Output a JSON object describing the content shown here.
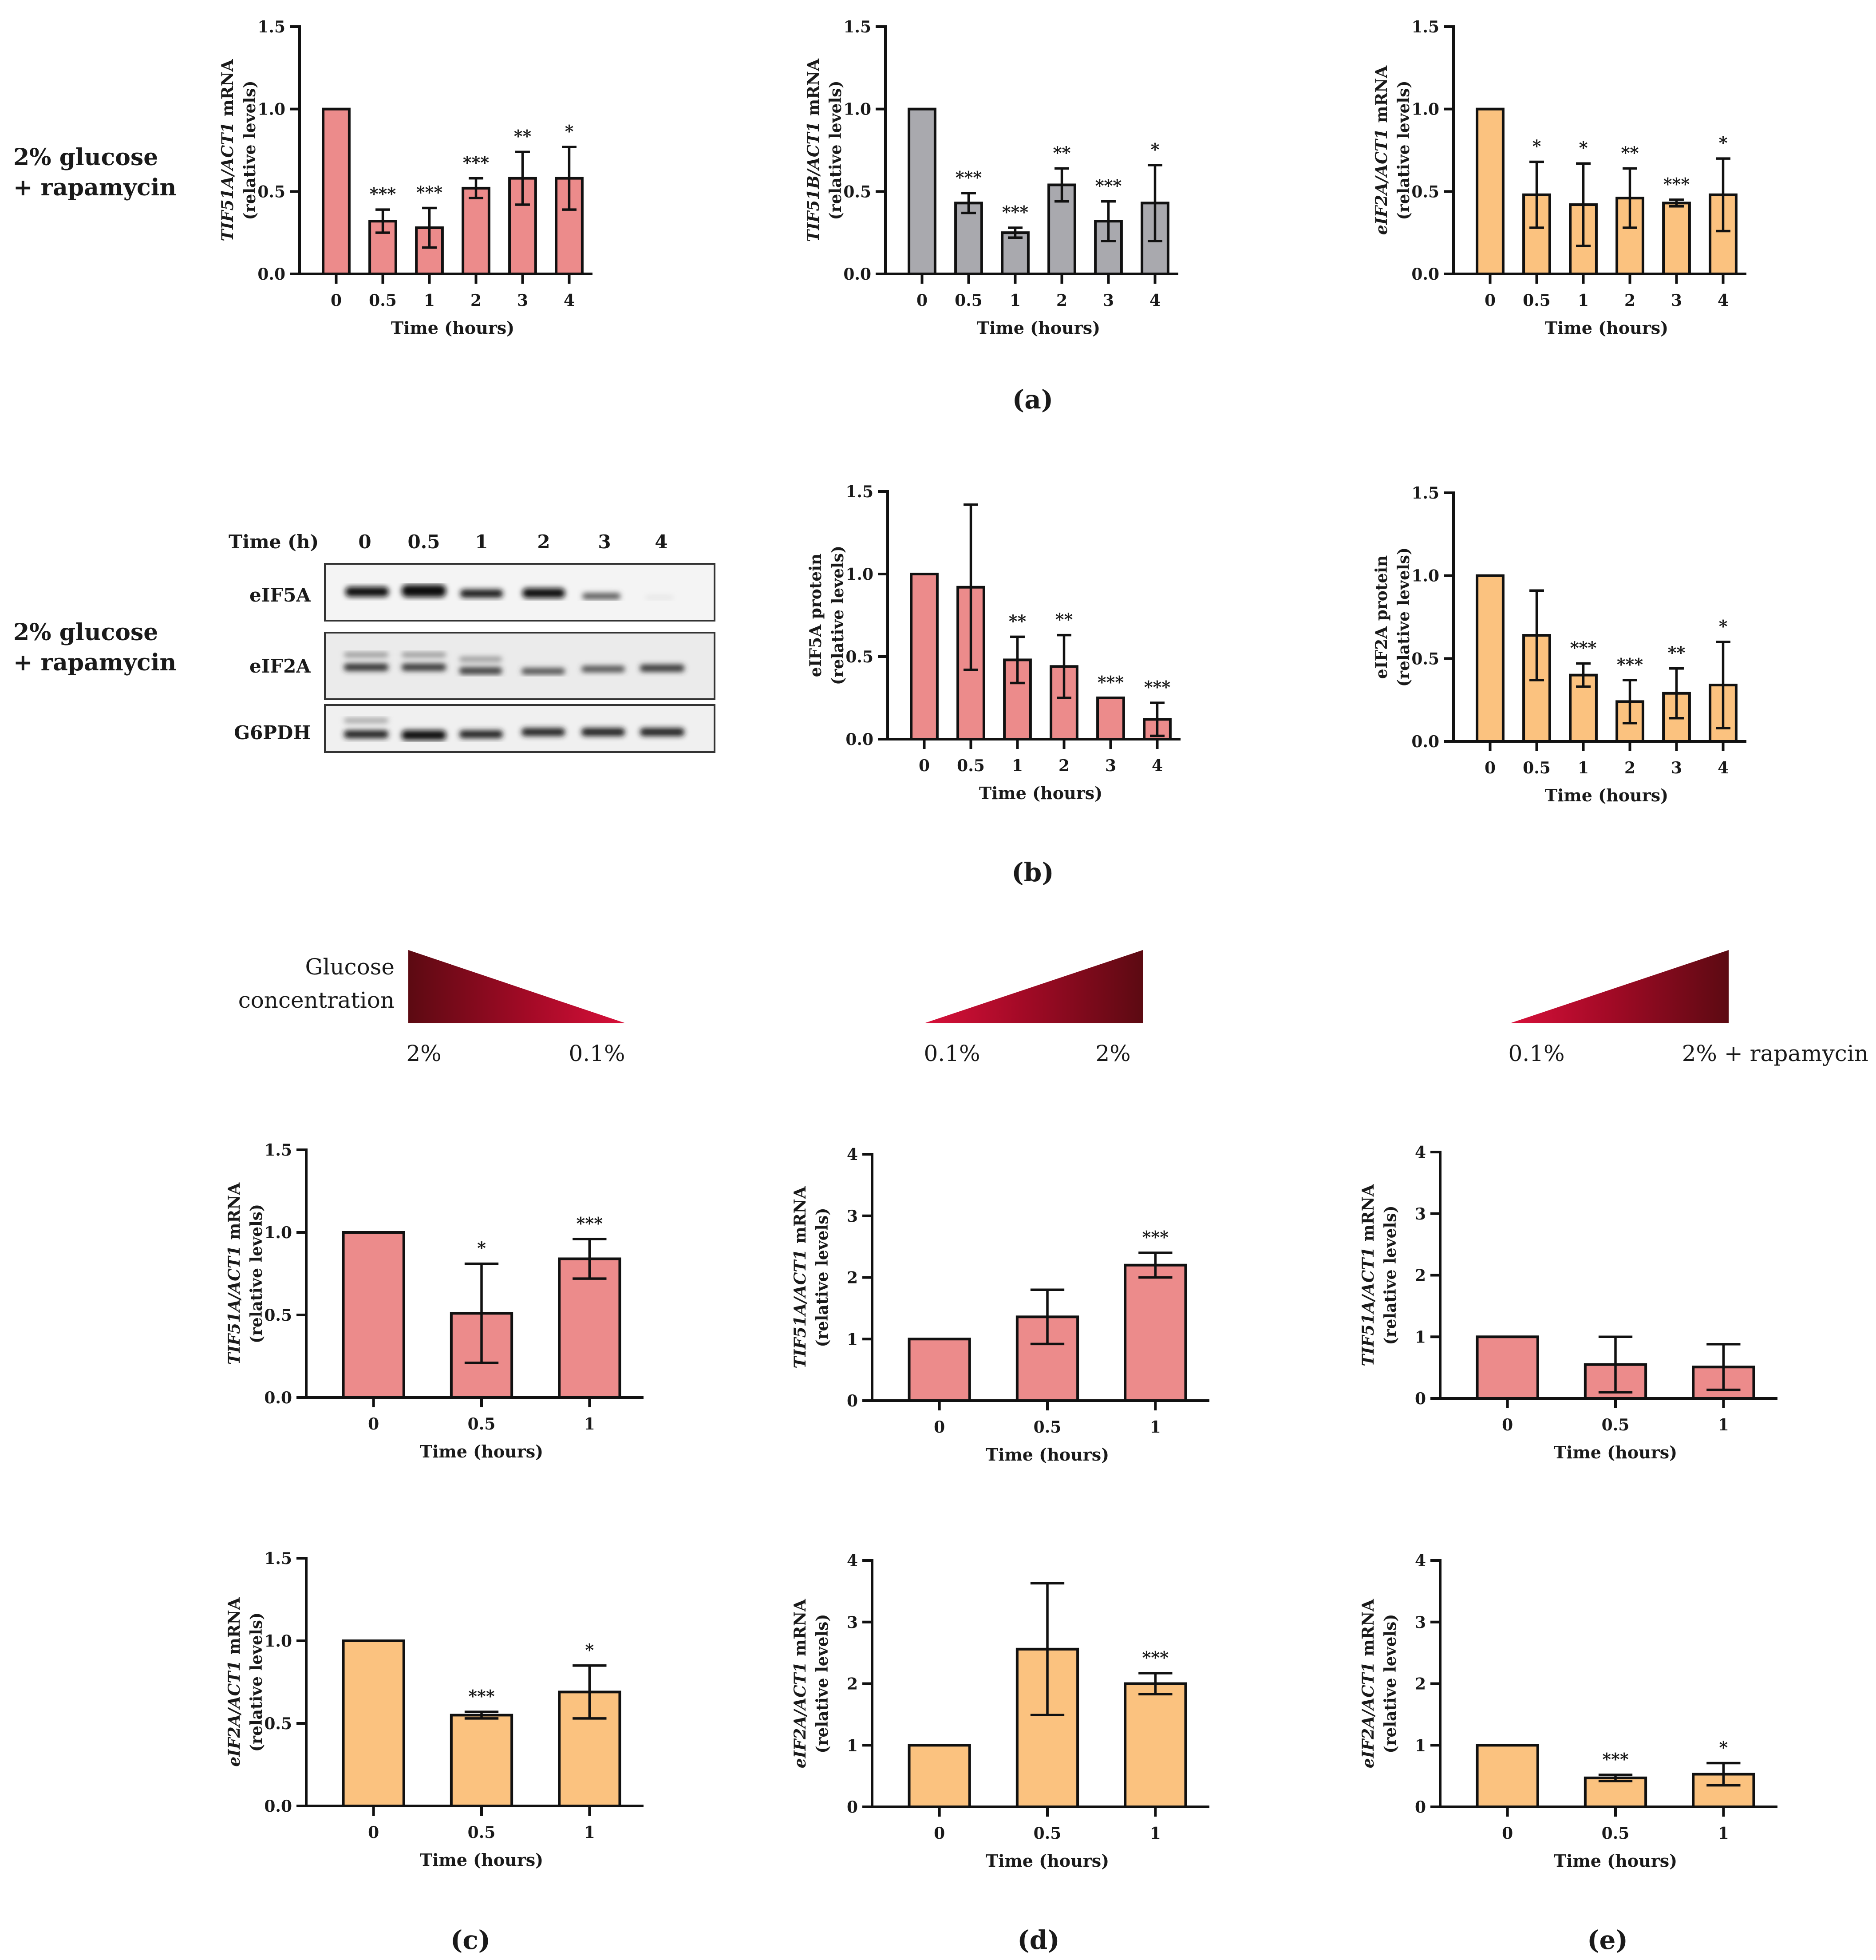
{
  "panel_labels": {
    "a": "(a)",
    "b": "(b)",
    "c": "(c)",
    "d": "(d)",
    "e": "(e)"
  },
  "condition_label": {
    "line1": "2% glucose",
    "line2": "+ rapamycin"
  },
  "gradient": {
    "title_line1": "Glucose",
    "title_line2": "concentration",
    "c_left": "2%",
    "c_right": "0.1%",
    "d_left": "0.1%",
    "d_right": "2%",
    "e_left": "0.1%",
    "e_right": "2% + rapamycin"
  },
  "colors": {
    "red": "#ec8b8b",
    "gray": "#a9a9ae",
    "orange": "#fbc27f",
    "gradient_dark": "#5c0a12",
    "gradient_mid": "#a30a26",
    "gradient_light": "#d8103a"
  },
  "blot": {
    "time_header": "Time (h)",
    "times": [
      "0",
      "0.5",
      "1",
      "2",
      "3",
      "4"
    ],
    "rows": [
      "eIF5A",
      "eIF2A",
      "G6PDH"
    ]
  },
  "chart_data": [
    {
      "id": "a1",
      "type": "bar",
      "color": "red",
      "ylabel_italic": "TIF51A/ACT1",
      "ylabel_rest": " mRNA",
      "ylabel2": "(relative levels)",
      "xlabel": "Time (hours)",
      "ylim": [
        0,
        1.5
      ],
      "yticks": [
        "0.0",
        "0.5",
        "1.0",
        "1.5"
      ],
      "categories": [
        "0",
        "0.5",
        "1",
        "2",
        "3",
        "4"
      ],
      "values": [
        1.0,
        0.32,
        0.28,
        0.52,
        0.58,
        0.58
      ],
      "errors": [
        0,
        0.07,
        0.12,
        0.06,
        0.16,
        0.19
      ],
      "significance": [
        "",
        "***",
        "***",
        "***",
        "**",
        "*"
      ]
    },
    {
      "id": "a2",
      "type": "bar",
      "color": "gray",
      "ylabel_italic": "TIF51B/ACT1",
      "ylabel_rest": " mRNA",
      "ylabel2": "(relative levels)",
      "xlabel": "Time (hours)",
      "ylim": [
        0,
        1.5
      ],
      "yticks": [
        "0.0",
        "0.5",
        "1.0",
        "1.5"
      ],
      "categories": [
        "0",
        "0.5",
        "1",
        "2",
        "3",
        "4"
      ],
      "values": [
        1.0,
        0.43,
        0.25,
        0.54,
        0.32,
        0.43
      ],
      "errors": [
        0,
        0.06,
        0.03,
        0.1,
        0.12,
        0.23
      ],
      "significance": [
        "",
        "***",
        "***",
        "**",
        "***",
        "*"
      ]
    },
    {
      "id": "a3",
      "type": "bar",
      "color": "orange",
      "ylabel_italic": "eIF2A/ACT1",
      "ylabel_rest": " mRNA",
      "ylabel2": "(relative levels)",
      "xlabel": "Time (hours)",
      "ylim": [
        0,
        1.5
      ],
      "yticks": [
        "0.0",
        "0.5",
        "1.0",
        "1.5"
      ],
      "categories": [
        "0",
        "0.5",
        "1",
        "2",
        "3",
        "4"
      ],
      "values": [
        1.0,
        0.48,
        0.42,
        0.46,
        0.43,
        0.48
      ],
      "errors": [
        0,
        0.2,
        0.25,
        0.18,
        0.02,
        0.22
      ],
      "significance": [
        "",
        "*",
        "*",
        "**",
        "***",
        "*"
      ]
    },
    {
      "id": "b1",
      "type": "bar",
      "color": "red",
      "ylabel_italic": "",
      "ylabel_rest": "eIF5A protein",
      "ylabel2": "(relative levels)",
      "xlabel": "Time (hours)",
      "ylim": [
        0,
        1.5
      ],
      "yticks": [
        "0.0",
        "0.5",
        "1.0",
        "1.5"
      ],
      "categories": [
        "0",
        "0.5",
        "1",
        "2",
        "3",
        "4"
      ],
      "values": [
        1.0,
        0.92,
        0.48,
        0.44,
        0.25,
        0.12
      ],
      "errors": [
        0,
        0.5,
        0.14,
        0.19,
        0.0,
        0.1
      ],
      "significance": [
        "",
        "",
        "**",
        "**",
        "***",
        "***"
      ]
    },
    {
      "id": "b2",
      "type": "bar",
      "color": "orange",
      "ylabel_italic": "",
      "ylabel_rest": "eIF2A protein",
      "ylabel2": "(relative levels)",
      "xlabel": "Time (hours)",
      "ylim": [
        0,
        1.5
      ],
      "yticks": [
        "0.0",
        "0.5",
        "1.0",
        "1.5"
      ],
      "categories": [
        "0",
        "0.5",
        "1",
        "2",
        "3",
        "4"
      ],
      "values": [
        1.0,
        0.64,
        0.4,
        0.24,
        0.29,
        0.34
      ],
      "errors": [
        0,
        0.27,
        0.07,
        0.13,
        0.15,
        0.26
      ],
      "significance": [
        "",
        "",
        "***",
        "***",
        "**",
        "*"
      ]
    },
    {
      "id": "c1",
      "type": "bar",
      "color": "red",
      "ylabel_italic": "TIF51A/ACT1",
      "ylabel_rest": " mRNA",
      "ylabel2": "(relative levels)",
      "xlabel": "Time (hours)",
      "ylim": [
        0,
        1.5
      ],
      "yticks": [
        "0.0",
        "0.5",
        "1.0",
        "1.5"
      ],
      "categories": [
        "0",
        "0.5",
        "1"
      ],
      "values": [
        1.0,
        0.51,
        0.84
      ],
      "errors": [
        0,
        0.3,
        0.12
      ],
      "significance": [
        "",
        "*",
        "***"
      ]
    },
    {
      "id": "d1",
      "type": "bar",
      "color": "red",
      "ylabel_italic": "TIF51A/ACT1",
      "ylabel_rest": " mRNA",
      "ylabel2": "(relative levels)",
      "xlabel": "Time (hours)",
      "ylim": [
        0,
        4
      ],
      "yticks": [
        "0",
        "1",
        "2",
        "3",
        "4"
      ],
      "categories": [
        "0",
        "0.5",
        "1"
      ],
      "values": [
        1.0,
        1.36,
        2.2
      ],
      "errors": [
        0,
        0.44,
        0.2
      ],
      "significance": [
        "",
        "",
        "***"
      ]
    },
    {
      "id": "e1",
      "type": "bar",
      "color": "red",
      "ylabel_italic": "TIF51A/ACT1",
      "ylabel_rest": " mRNA",
      "ylabel2": "(relative levels)",
      "xlabel": "Time (hours)",
      "ylim": [
        0,
        4
      ],
      "yticks": [
        "0",
        "1",
        "2",
        "3",
        "4"
      ],
      "categories": [
        "0",
        "0.5",
        "1"
      ],
      "values": [
        1.0,
        0.55,
        0.51
      ],
      "errors": [
        0,
        0.45,
        0.37
      ],
      "significance": [
        "",
        "",
        ""
      ]
    },
    {
      "id": "c2",
      "type": "bar",
      "color": "orange",
      "ylabel_italic": "eIF2A/ACT1",
      "ylabel_rest": " mRNA",
      "ylabel2": "(relative levels)",
      "xlabel": "Time (hours)",
      "ylim": [
        0,
        1.5
      ],
      "yticks": [
        "0.0",
        "0.5",
        "1.0",
        "1.5"
      ],
      "categories": [
        "0",
        "0.5",
        "1"
      ],
      "values": [
        1.0,
        0.55,
        0.69
      ],
      "errors": [
        0,
        0.02,
        0.16
      ],
      "significance": [
        "",
        "***",
        "*"
      ]
    },
    {
      "id": "d2",
      "type": "bar",
      "color": "orange",
      "ylabel_italic": "eIF2A/ACT1",
      "ylabel_rest": " mRNA",
      "ylabel2": "(relative levels)",
      "xlabel": "Time (hours)",
      "ylim": [
        0,
        4
      ],
      "yticks": [
        "0",
        "1",
        "2",
        "3",
        "4"
      ],
      "categories": [
        "0",
        "0.5",
        "1"
      ],
      "values": [
        1.0,
        2.56,
        2.0
      ],
      "errors": [
        0,
        1.07,
        0.17
      ],
      "significance": [
        "",
        "",
        "***"
      ]
    },
    {
      "id": "e2",
      "type": "bar",
      "color": "orange",
      "ylabel_italic": "eIF2A/ACT1",
      "ylabel_rest": " mRNA",
      "ylabel2": "(relative levels)",
      "xlabel": "Time (hours)",
      "ylim": [
        0,
        4
      ],
      "yticks": [
        "0",
        "1",
        "2",
        "3",
        "4"
      ],
      "categories": [
        "0",
        "0.5",
        "1"
      ],
      "values": [
        1.0,
        0.47,
        0.53
      ],
      "errors": [
        0,
        0.05,
        0.18
      ],
      "significance": [
        "",
        "***",
        "*"
      ]
    }
  ]
}
